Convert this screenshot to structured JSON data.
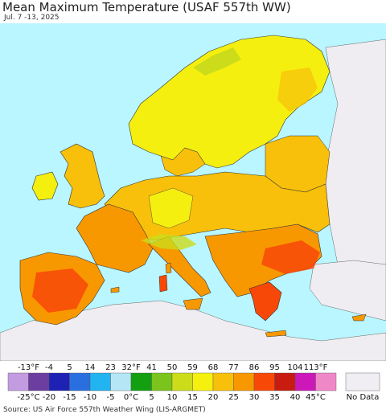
{
  "title": "Mean Maximum Temperature (USAF 557th WW)",
  "date_range": "Jul. 7 -13, 2025",
  "source": "Source: US Air Force 557th Weather Wing (LIS-ARGMET)",
  "legend": {
    "fahrenheit_labels": [
      "-13°F",
      "-4",
      "5",
      "14",
      "23",
      "32°F",
      "41",
      "50",
      "59",
      "68",
      "77",
      "86",
      "95",
      "104",
      "113°F"
    ],
    "celsius_labels": [
      "-25°C",
      "-20",
      "-15",
      "-10",
      "-5",
      "0°C",
      "5",
      "10",
      "15",
      "20",
      "25",
      "30",
      "35",
      "40",
      "45°C"
    ],
    "colors": [
      "#c39be0",
      "#6c3ea0",
      "#1e22b4",
      "#2a6fe0",
      "#22b4f0",
      "#b4e6f6",
      "#12a010",
      "#7ac41c",
      "#ccdc1a",
      "#f6f00e",
      "#f8c00a",
      "#f89800",
      "#f84808",
      "#c81c10",
      "#cc18b8",
      "#f088c8"
    ],
    "no_data_label": "No Data",
    "no_data_color": "#f0eef2"
  },
  "map": {
    "sea_color": "#b9f6ff",
    "nondata_land_color": "#efedf1"
  }
}
